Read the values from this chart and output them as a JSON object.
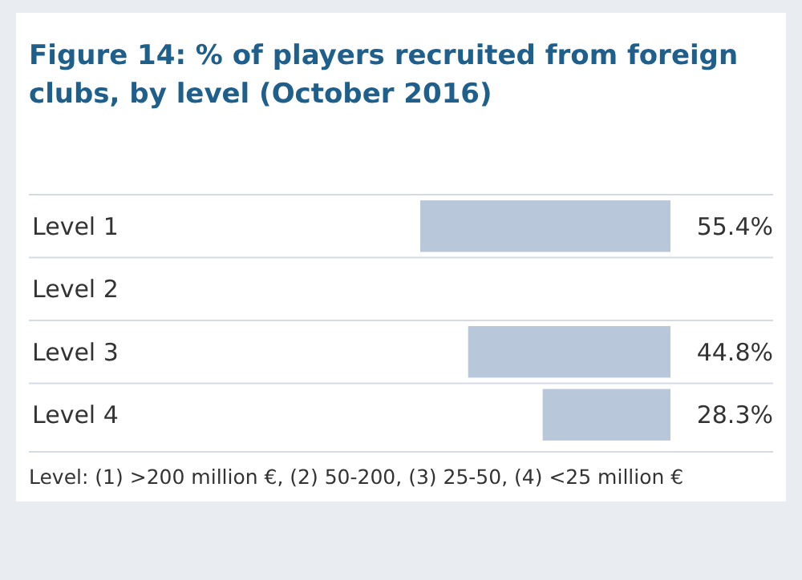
{
  "chart_data": {
    "type": "bar",
    "orientation": "horizontal",
    "title": "Figure 14: % of players recruited from foreign clubs, by level (October 2016)",
    "categories": [
      "Level 1",
      "Level 2",
      "Level 3",
      "Level 4"
    ],
    "values": [
      55.4,
      null,
      44.8,
      28.3
    ],
    "color": "#b8c8da",
    "value_labels": [
      "55.4%",
      null,
      "44.8%",
      "28.3%"
    ],
    "annotations": [
      "Level: (1) >200 million €, (2) 50-200, (3) 25-50, (4) <25 million €"
    ]
  }
}
